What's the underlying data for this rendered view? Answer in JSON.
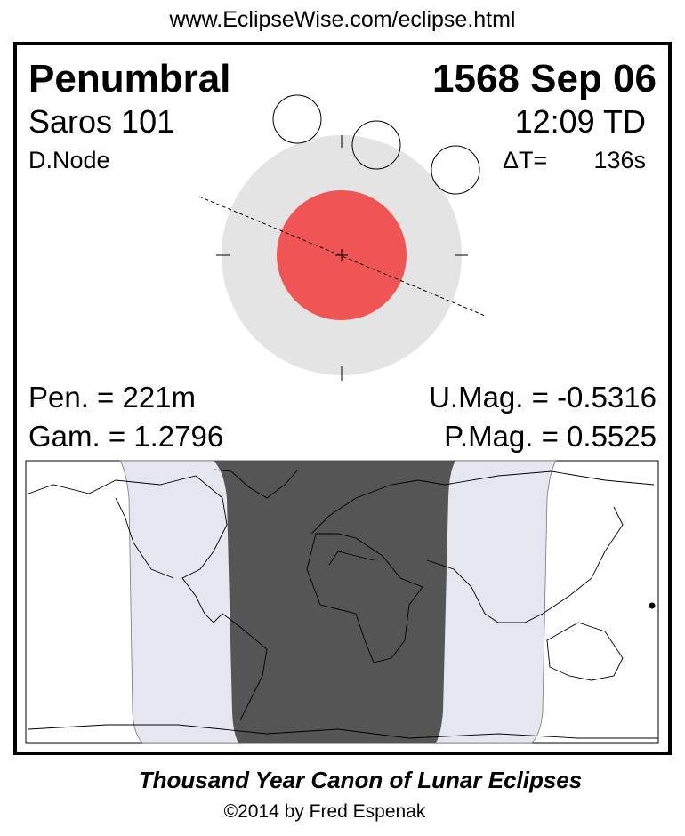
{
  "url": "www.EclipseWise.com/eclipse.html",
  "eclipse_type": "Penumbral",
  "date": "1568 Sep 06",
  "saros": "Saros 101",
  "time": "12:09 TD",
  "node": "D.Node",
  "delta_t_label": "ΔT=",
  "delta_t_value": "136s",
  "pen_duration": "Pen. = 221m",
  "gamma": "Gam. = 1.2796",
  "umbral_mag": "U.Mag. = -0.5316",
  "penumbral_mag": "P.Mag. = 0.5525",
  "footer_title": "Thousand Year Canon of Lunar Eclipses",
  "footer_copyright": "©2014 by Fred Espenak",
  "colors": {
    "penumbra": "#E4E4E4",
    "umbra": "#EF5555",
    "map_penumbral_zone": "#E6E6F0",
    "map_full_visibility": "#555555"
  }
}
